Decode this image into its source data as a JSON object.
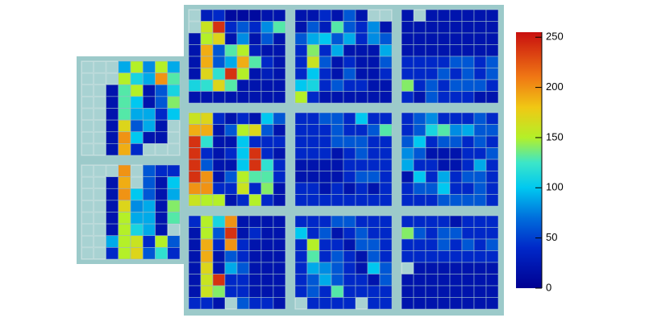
{
  "chart_data": {
    "type": "heatmap",
    "zlim": [
      0,
      255
    ],
    "zticks": [
      0,
      50,
      100,
      150,
      200,
      250
    ],
    "colorscale": [
      [
        0,
        "#000091"
      ],
      [
        40,
        "#0028c8"
      ],
      [
        70,
        "#006edc"
      ],
      [
        100,
        "#00c8f0"
      ],
      [
        125,
        "#3ce6c8"
      ],
      [
        150,
        "#b4f028"
      ],
      [
        180,
        "#f0c814"
      ],
      [
        210,
        "#f07814"
      ],
      [
        255,
        "#c80f0f"
      ]
    ],
    "panels": [
      {
        "z": [
          [
            null,
            30,
            40,
            10,
            10,
            10,
            20,
            20
          ],
          [
            null,
            160,
            240,
            40,
            60,
            40,
            80,
            130
          ],
          [
            20,
            150,
            170,
            20,
            80,
            20,
            60,
            20
          ],
          [
            20,
            190,
            60,
            130,
            150,
            30,
            20,
            20
          ],
          [
            20,
            190,
            60,
            90,
            190,
            130,
            40,
            20
          ],
          [
            20,
            170,
            120,
            240,
            150,
            20,
            30,
            20
          ],
          [
            110,
            120,
            170,
            130,
            20,
            20,
            20,
            20
          ],
          [
            20,
            20,
            20,
            20,
            20,
            20,
            20,
            20
          ]
        ]
      },
      {
        "z": [
          [
            20,
            20,
            40,
            20,
            60,
            20,
            null,
            null
          ],
          [
            20,
            60,
            30,
            130,
            60,
            40,
            80,
            20
          ],
          [
            60,
            90,
            100,
            60,
            90,
            40,
            80,
            60
          ],
          [
            40,
            140,
            40,
            90,
            20,
            20,
            20,
            90
          ],
          [
            40,
            160,
            60,
            20,
            40,
            20,
            20,
            60
          ],
          [
            40,
            100,
            40,
            20,
            60,
            20,
            20,
            40
          ],
          [
            100,
            110,
            40,
            60,
            40,
            40,
            20,
            20
          ],
          [
            150,
            40,
            20,
            20,
            20,
            20,
            20,
            20
          ]
        ]
      },
      {
        "z": [
          [
            20,
            null,
            20,
            20,
            20,
            20,
            20,
            20
          ],
          [
            20,
            20,
            20,
            20,
            20,
            20,
            20,
            20
          ],
          [
            20,
            20,
            20,
            20,
            20,
            20,
            20,
            20
          ],
          [
            20,
            20,
            20,
            20,
            20,
            20,
            20,
            20
          ],
          [
            40,
            40,
            40,
            40,
            60,
            60,
            40,
            60
          ],
          [
            40,
            40,
            40,
            60,
            40,
            60,
            40,
            60
          ],
          [
            140,
            40,
            60,
            40,
            60,
            60,
            60,
            40
          ],
          [
            40,
            20,
            60,
            40,
            40,
            40,
            20,
            20
          ]
        ]
      },
      {
        "z": [
          [
            160,
            170,
            40,
            20,
            40,
            20,
            100,
            60
          ],
          [
            190,
            190,
            20,
            60,
            150,
            170,
            60,
            20
          ],
          [
            240,
            120,
            20,
            20,
            100,
            40,
            40,
            40
          ],
          [
            240,
            40,
            20,
            40,
            100,
            240,
            40,
            20
          ],
          [
            240,
            60,
            20,
            20,
            100,
            240,
            120,
            40
          ],
          [
            240,
            200,
            20,
            60,
            150,
            130,
            130,
            40
          ],
          [
            200,
            200,
            40,
            40,
            160,
            40,
            140,
            20
          ],
          [
            160,
            150,
            150,
            20,
            40,
            150,
            40,
            20
          ]
        ]
      },
      {
        "z": [
          [
            40,
            40,
            60,
            60,
            40,
            100,
            40,
            40
          ],
          [
            40,
            40,
            40,
            60,
            40,
            40,
            60,
            130
          ],
          [
            40,
            40,
            40,
            60,
            60,
            60,
            40,
            40
          ],
          [
            40,
            40,
            40,
            20,
            40,
            60,
            40,
            40
          ],
          [
            20,
            20,
            20,
            20,
            40,
            40,
            40,
            40
          ],
          [
            20,
            20,
            20,
            20,
            40,
            60,
            60,
            40
          ],
          [
            40,
            40,
            20,
            40,
            20,
            40,
            20,
            40
          ],
          [
            40,
            40,
            40,
            40,
            40,
            40,
            40,
            40
          ]
        ]
      },
      {
        "z": [
          [
            40,
            60,
            80,
            40,
            40,
            40,
            60,
            40
          ],
          [
            40,
            60,
            110,
            130,
            80,
            90,
            60,
            60
          ],
          [
            60,
            100,
            40,
            60,
            60,
            40,
            60,
            40
          ],
          [
            80,
            60,
            20,
            20,
            20,
            40,
            40,
            60
          ],
          [
            90,
            40,
            40,
            20,
            20,
            40,
            90,
            40
          ],
          [
            20,
            100,
            40,
            90,
            40,
            60,
            60,
            40
          ],
          [
            40,
            60,
            60,
            100,
            40,
            40,
            60,
            40
          ],
          [
            40,
            40,
            40,
            60,
            60,
            60,
            60,
            40
          ]
        ]
      },
      {
        "z": [
          [
            40,
            150,
            110,
            200,
            20,
            20,
            20,
            20
          ],
          [
            20,
            150,
            60,
            240,
            20,
            40,
            20,
            20
          ],
          [
            20,
            190,
            40,
            200,
            40,
            20,
            20,
            20
          ],
          [
            20,
            190,
            20,
            60,
            40,
            20,
            20,
            20
          ],
          [
            20,
            170,
            20,
            90,
            60,
            20,
            20,
            20
          ],
          [
            20,
            160,
            240,
            40,
            40,
            20,
            20,
            20
          ],
          [
            20,
            160,
            140,
            40,
            40,
            20,
            20,
            20
          ],
          [
            40,
            40,
            20,
            null,
            60,
            40,
            40,
            20
          ]
        ]
      },
      {
        "z": [
          [
            40,
            40,
            40,
            60,
            60,
            40,
            40,
            40
          ],
          [
            100,
            40,
            60,
            20,
            40,
            60,
            40,
            40
          ],
          [
            40,
            150,
            40,
            40,
            20,
            60,
            60,
            40
          ],
          [
            40,
            130,
            40,
            60,
            40,
            20,
            60,
            40
          ],
          [
            40,
            90,
            80,
            60,
            40,
            20,
            100,
            60
          ],
          [
            40,
            60,
            90,
            60,
            40,
            40,
            20,
            60
          ],
          [
            40,
            60,
            40,
            130,
            40,
            40,
            40,
            40
          ],
          [
            null,
            40,
            40,
            40,
            40,
            null,
            40,
            40
          ]
        ]
      },
      {
        "z": [
          [
            40,
            40,
            40,
            40,
            20,
            40,
            40,
            40
          ],
          [
            140,
            60,
            40,
            60,
            60,
            40,
            40,
            40
          ],
          [
            40,
            40,
            40,
            60,
            40,
            60,
            40,
            60
          ],
          [
            40,
            40,
            40,
            40,
            40,
            40,
            40,
            40
          ],
          [
            null,
            20,
            20,
            20,
            20,
            20,
            20,
            20
          ],
          [
            20,
            20,
            20,
            20,
            20,
            20,
            20,
            20
          ],
          [
            20,
            20,
            20,
            20,
            20,
            20,
            20,
            20
          ],
          [
            20,
            20,
            20,
            20,
            20,
            20,
            20,
            20
          ]
        ]
      },
      {
        "z": [
          [
            null,
            null,
            null,
            90,
            150,
            80,
            150,
            90
          ],
          [
            null,
            null,
            null,
            150,
            110,
            90,
            200,
            130
          ],
          [
            null,
            null,
            20,
            130,
            150,
            20,
            60,
            110
          ],
          [
            null,
            null,
            20,
            130,
            100,
            20,
            60,
            140
          ],
          [
            null,
            null,
            20,
            130,
            90,
            90,
            40,
            100
          ],
          [
            null,
            null,
            20,
            170,
            60,
            90,
            20,
            null
          ],
          [
            null,
            null,
            20,
            200,
            100,
            20,
            20,
            null
          ],
          [
            null,
            null,
            20,
            190,
            40,
            null,
            null,
            null
          ]
        ]
      },
      {
        "z": [
          [
            null,
            null,
            null,
            200,
            null,
            60,
            40,
            40
          ],
          [
            null,
            null,
            20,
            190,
            null,
            60,
            20,
            100
          ],
          [
            null,
            null,
            20,
            200,
            100,
            60,
            20,
            90
          ],
          [
            null,
            null,
            20,
            170,
            80,
            90,
            20,
            140
          ],
          [
            null,
            null,
            20,
            150,
            90,
            90,
            20,
            130
          ],
          [
            null,
            null,
            20,
            150,
            110,
            90,
            20,
            null
          ],
          [
            null,
            null,
            90,
            150,
            160,
            40,
            150,
            60
          ],
          [
            null,
            null,
            40,
            150,
            170,
            60,
            120,
            40
          ]
        ]
      }
    ]
  }
}
